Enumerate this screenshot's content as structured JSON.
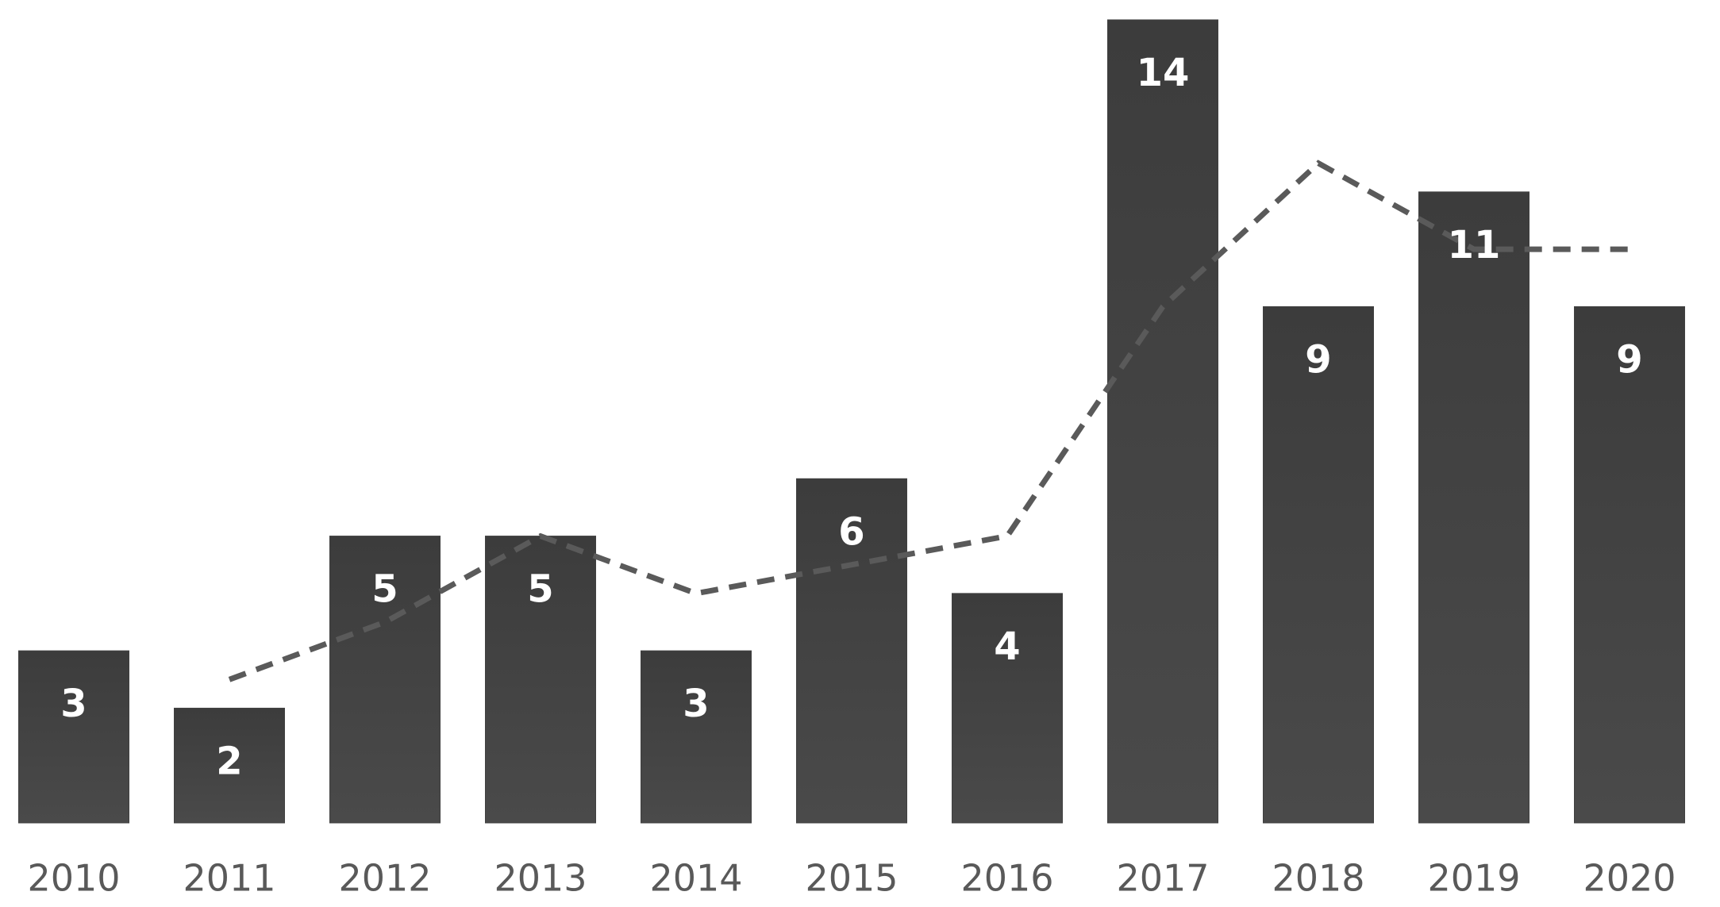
{
  "chart_data": {
    "type": "bar",
    "categories": [
      "2010",
      "2011",
      "2012",
      "2013",
      "2014",
      "2015",
      "2016",
      "2017",
      "2018",
      "2019",
      "2020"
    ],
    "values": [
      3,
      2,
      5,
      5,
      3,
      6,
      4,
      14,
      9,
      11,
      9
    ],
    "color": "#404040",
    "trend_values": [
      null,
      2.5,
      3.5,
      5,
      4,
      4.5,
      5,
      9,
      11.5,
      10,
      10
    ],
    "trend_color": "#5a5a5a"
  }
}
